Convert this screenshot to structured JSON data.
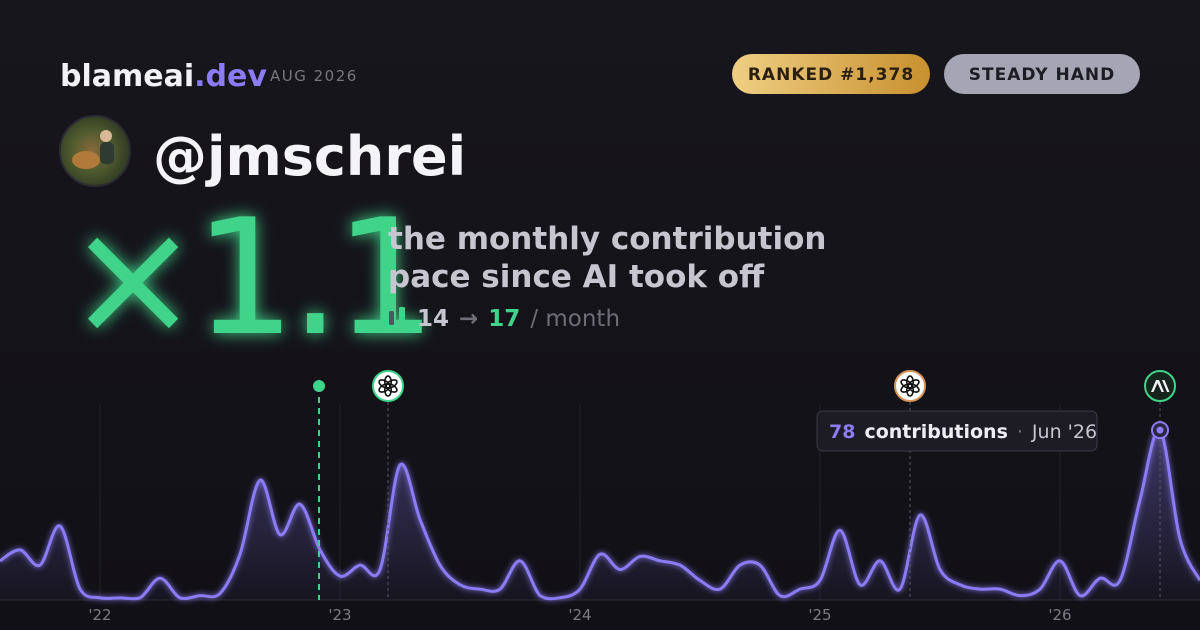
{
  "header": {
    "brand": "blameai",
    "brand_suffix": ".dev",
    "period": "AUG 2026",
    "badges": [
      "RANKED #1,378",
      "STEADY HAND"
    ],
    "handle": "@jmschrei"
  },
  "headline": {
    "multiplier": "×1.1",
    "description": [
      "the monthly contribution",
      "pace since AI took off"
    ],
    "before": "14",
    "arrow": "→",
    "after": "17",
    "unit": "/ month"
  },
  "tooltip": {
    "value": "78",
    "label": "contributions",
    "separator": "·",
    "date": "Jun '26"
  },
  "chart_data": {
    "type": "area",
    "x": [
      2021.5833,
      2021.6667,
      2021.75,
      2021.8333,
      2021.9167,
      2022,
      2022.0833,
      2022.1667,
      2022.25,
      2022.3333,
      2022.4167,
      2022.5,
      2022.5833,
      2022.6667,
      2022.75,
      2022.8333,
      2022.9167,
      2023,
      2023.0833,
      2023.1667,
      2023.25,
      2023.3333,
      2023.4167,
      2023.5,
      2023.5833,
      2023.6667,
      2023.75,
      2023.8333,
      2023.9167,
      2024,
      2024.0833,
      2024.1667,
      2024.25,
      2024.3333,
      2024.4167,
      2024.5,
      2024.5833,
      2024.6667,
      2024.75,
      2024.8333,
      2024.9167,
      2025,
      2025.0833,
      2025.1667,
      2025.25,
      2025.3333,
      2025.4167,
      2025.5,
      2025.5833,
      2025.6667,
      2025.75,
      2025.8333,
      2025.9167,
      2026,
      2026.0833,
      2026.1667,
      2026.25,
      2026.3333,
      2026.4167,
      2026.5,
      2026.5833
    ],
    "series": [
      {
        "color": "#8b7cf6",
        "values": [
          18,
          23,
          16,
          34,
          5,
          1,
          1,
          1,
          10,
          1,
          2,
          3,
          21,
          55,
          30,
          44,
          23,
          11,
          16,
          14,
          62,
          37,
          16,
          7,
          5,
          5,
          18,
          2,
          1,
          5,
          21,
          14,
          20,
          18,
          16,
          9,
          5,
          16,
          16,
          2,
          5,
          9,
          32,
          7,
          18,
          5,
          39,
          14,
          7,
          5,
          5,
          2,
          5,
          18,
          2,
          10,
          9,
          46,
          78,
          28,
          9
        ]
      }
    ],
    "xlim": [
      2021.5833,
      2026.5833
    ],
    "ylim": [
      0,
      90
    ],
    "xticks": [
      {
        "value": 2022,
        "label": "'22"
      },
      {
        "value": 2023,
        "label": "'23"
      },
      {
        "value": 2024,
        "label": "'24"
      },
      {
        "value": 2025,
        "label": "'25"
      },
      {
        "value": 2026,
        "label": "'26"
      }
    ],
    "grid": true,
    "highlight": 58,
    "milestones": [
      {
        "x": 2022.9125,
        "kind": "dot",
        "color": "#3fd48a"
      },
      {
        "x": 2023.2,
        "kind": "openai",
        "color": "#3fd48a"
      },
      {
        "x": 2025.375,
        "kind": "openai",
        "color": "#d9945a"
      },
      {
        "x": 2026.4167,
        "kind": "anthropic",
        "color": "#3fd48a"
      }
    ]
  }
}
